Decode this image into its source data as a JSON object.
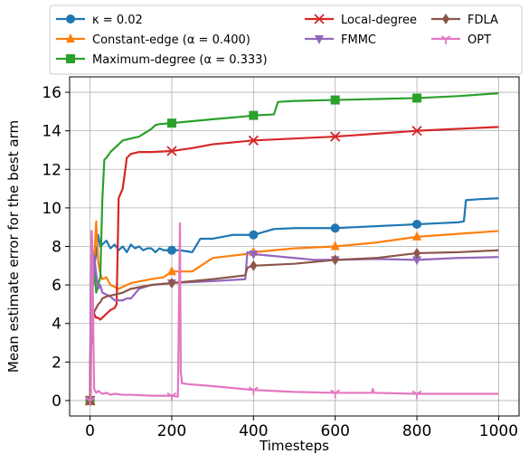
{
  "chart_data": {
    "type": "line",
    "title": "",
    "xlabel": "Timesteps",
    "ylabel": "Mean estimate error for the best arm",
    "xlim": [
      -50,
      1050
    ],
    "ylim": [
      -0.8,
      16.8
    ],
    "x_ticks": [
      0,
      200,
      400,
      600,
      800,
      1000
    ],
    "y_ticks": [
      0,
      2,
      4,
      6,
      8,
      10,
      12,
      14,
      16
    ],
    "x_tick_labels": [
      "0",
      "200",
      "400",
      "600",
      "800",
      "1000"
    ],
    "y_tick_labels": [
      "0",
      "2",
      "4",
      "6",
      "8",
      "10",
      "12",
      "14",
      "16"
    ],
    "grid": true,
    "legend_position": "top (outside, 3 columns)",
    "series": [
      {
        "name": "κ = 0.02",
        "color": "#1f77b4",
        "marker": "circle",
        "x": [
          0,
          2,
          4,
          6,
          8,
          10,
          15,
          20,
          25,
          30,
          40,
          50,
          60,
          70,
          80,
          90,
          100,
          110,
          120,
          130,
          140,
          150,
          160,
          170,
          180,
          190,
          200,
          220,
          250,
          270,
          300,
          350,
          400,
          450,
          500,
          550,
          600,
          650,
          700,
          750,
          800,
          850,
          900,
          915,
          920,
          950,
          1000
        ],
        "y": [
          0,
          5.0,
          7.2,
          7.8,
          7.5,
          7.0,
          7.6,
          8.6,
          8.0,
          8.1,
          8.3,
          7.9,
          8.1,
          7.8,
          8.0,
          7.7,
          8.1,
          7.9,
          8.0,
          7.8,
          7.9,
          7.9,
          7.7,
          7.9,
          7.8,
          7.8,
          7.8,
          7.8,
          7.7,
          8.4,
          8.4,
          8.6,
          8.6,
          8.9,
          8.95,
          8.95,
          8.95,
          9.0,
          9.05,
          9.1,
          9.15,
          9.2,
          9.25,
          9.3,
          10.4,
          10.45,
          10.5
        ]
      },
      {
        "name": "Constant-edge (α = 0.400)",
        "color": "#ff7f0e",
        "marker": "triangle-up",
        "x": [
          0,
          2,
          4,
          6,
          8,
          10,
          15,
          20,
          25,
          30,
          40,
          50,
          60,
          70,
          100,
          150,
          180,
          200,
          250,
          300,
          380,
          400,
          450,
          500,
          600,
          700,
          800,
          900,
          1000
        ],
        "y": [
          0,
          6.0,
          5.2,
          5.8,
          6.6,
          7.2,
          9.3,
          7.2,
          6.6,
          6.3,
          6.4,
          6.0,
          5.9,
          5.8,
          6.1,
          6.3,
          6.4,
          6.7,
          6.7,
          7.4,
          7.6,
          7.7,
          7.8,
          7.9,
          8.0,
          8.2,
          8.5,
          8.65,
          8.8
        ]
      },
      {
        "name": "Maximum-degree (α = 0.333)",
        "color": "#2ca02c",
        "marker": "square",
        "x": [
          0,
          2,
          4,
          6,
          8,
          10,
          15,
          20,
          25,
          30,
          35,
          40,
          50,
          60,
          70,
          80,
          100,
          120,
          150,
          160,
          170,
          200,
          250,
          300,
          380,
          400,
          450,
          460,
          500,
          600,
          700,
          800,
          900,
          1000
        ],
        "y": [
          0,
          5.2,
          4.6,
          7.0,
          6.2,
          7.0,
          5.6,
          6.0,
          6.4,
          10.4,
          12.5,
          12.6,
          12.9,
          13.1,
          13.3,
          13.5,
          13.6,
          13.7,
          14.1,
          14.3,
          14.35,
          14.4,
          14.5,
          14.6,
          14.75,
          14.8,
          14.85,
          15.5,
          15.55,
          15.6,
          15.65,
          15.7,
          15.8,
          15.95
        ]
      },
      {
        "name": "Local-degree",
        "color": "#d62728",
        "marker": "x",
        "x": [
          0,
          2,
          4,
          6,
          8,
          10,
          15,
          20,
          25,
          30,
          40,
          50,
          60,
          65,
          70,
          80,
          90,
          100,
          120,
          150,
          200,
          250,
          300,
          350,
          400,
          500,
          600,
          700,
          800,
          900,
          1000
        ],
        "y": [
          0,
          4.0,
          5.5,
          4.5,
          4.7,
          4.5,
          4.3,
          4.3,
          4.2,
          4.3,
          4.5,
          4.7,
          4.8,
          5.0,
          10.5,
          11.0,
          12.6,
          12.8,
          12.9,
          12.9,
          12.95,
          13.1,
          13.3,
          13.4,
          13.5,
          13.6,
          13.7,
          13.85,
          14.0,
          14.1,
          14.2
        ]
      },
      {
        "name": "FMMC",
        "color": "#9467bd",
        "marker": "triangle-down",
        "x": [
          0,
          2,
          4,
          6,
          8,
          10,
          15,
          20,
          25,
          30,
          40,
          50,
          60,
          70,
          80,
          90,
          100,
          120,
          150,
          200,
          300,
          380,
          385,
          400,
          450,
          500,
          550,
          600,
          700,
          800,
          900,
          1000
        ],
        "y": [
          0,
          6.5,
          8.8,
          6.5,
          6.0,
          7.5,
          6.6,
          5.8,
          6.0,
          5.6,
          5.5,
          5.4,
          5.2,
          5.2,
          5.2,
          5.3,
          5.3,
          5.8,
          6.0,
          6.1,
          6.2,
          6.3,
          7.7,
          7.6,
          7.5,
          7.4,
          7.3,
          7.3,
          7.35,
          7.3,
          7.4,
          7.45
        ]
      },
      {
        "name": "FDLA",
        "color": "#8c564b",
        "marker": "diamond",
        "x": [
          0,
          2,
          4,
          6,
          8,
          10,
          15,
          20,
          25,
          30,
          40,
          60,
          80,
          100,
          150,
          200,
          300,
          380,
          385,
          400,
          500,
          600,
          700,
          800,
          900,
          1000
        ],
        "y": [
          0,
          2.0,
          4.6,
          3.0,
          4.3,
          4.6,
          4.8,
          5.0,
          5.1,
          5.3,
          5.4,
          5.5,
          5.6,
          5.8,
          6.0,
          6.1,
          6.3,
          6.5,
          6.9,
          7.0,
          7.1,
          7.3,
          7.4,
          7.65,
          7.7,
          7.8
        ]
      },
      {
        "name": "OPT",
        "color": "#e377c2",
        "marker": "tri-down",
        "x": [
          0,
          2,
          4,
          6,
          8,
          10,
          15,
          20,
          30,
          40,
          50,
          60,
          80,
          100,
          150,
          200,
          215,
          220,
          222,
          225,
          240,
          300,
          400,
          500,
          600,
          690,
          692,
          695,
          700,
          800,
          900,
          1000
        ],
        "y": [
          0,
          0.3,
          8.8,
          7.6,
          3.5,
          0.6,
          0.4,
          0.5,
          0.35,
          0.4,
          0.3,
          0.35,
          0.3,
          0.3,
          0.25,
          0.25,
          0.2,
          9.2,
          1.5,
          0.9,
          0.85,
          0.75,
          0.55,
          0.45,
          0.4,
          0.4,
          0.6,
          0.4,
          0.4,
          0.35,
          0.35,
          0.35
        ]
      }
    ]
  }
}
